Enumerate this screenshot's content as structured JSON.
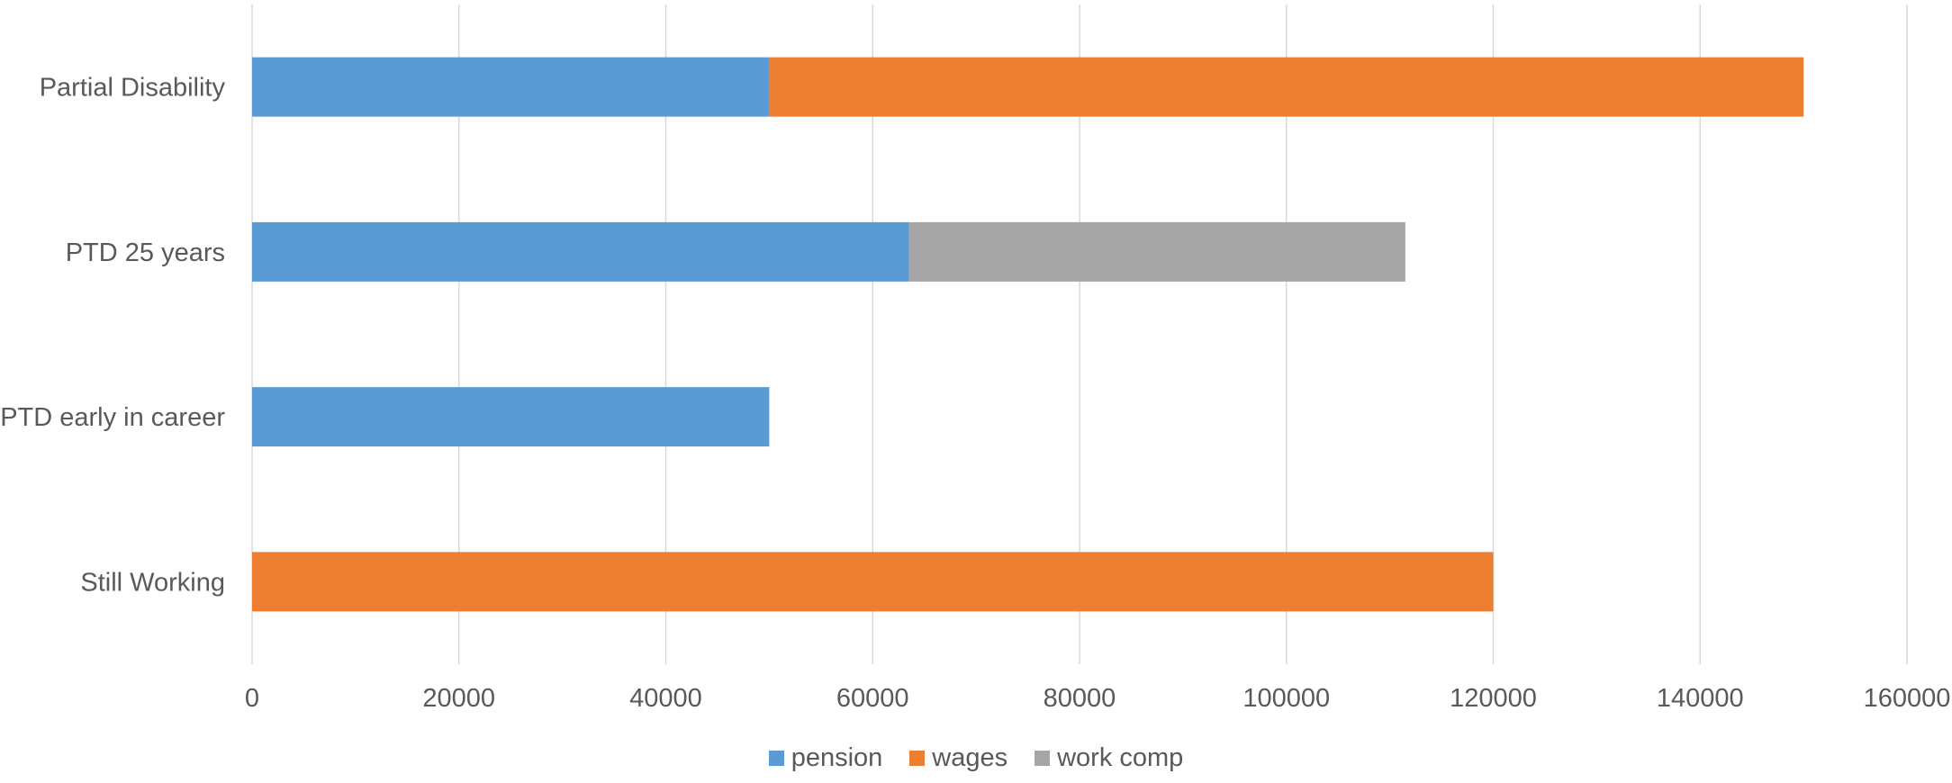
{
  "chart_data": {
    "type": "bar",
    "orientation": "horizontal",
    "stacked": true,
    "title": "",
    "xlabel": "",
    "ylabel": "",
    "categories": [
      "Partial Disability",
      "PTD 25 years",
      "PTD early in career",
      "Still Working"
    ],
    "series": [
      {
        "name": "pension",
        "color": "#5B9BD5",
        "values": [
          50000,
          63500,
          50000,
          0
        ]
      },
      {
        "name": "wages",
        "color": "#ED7D31",
        "values": [
          100000,
          0,
          0,
          120000
        ]
      },
      {
        "name": "work comp",
        "color": "#A5A5A5",
        "values": [
          0,
          48000,
          0,
          0
        ]
      }
    ],
    "xlim": [
      0,
      160000
    ],
    "xticks": [
      "0",
      "20000",
      "40000",
      "60000",
      "80000",
      "100000",
      "120000",
      "140000",
      "160000"
    ],
    "grid": true,
    "legend_position": "bottom"
  }
}
